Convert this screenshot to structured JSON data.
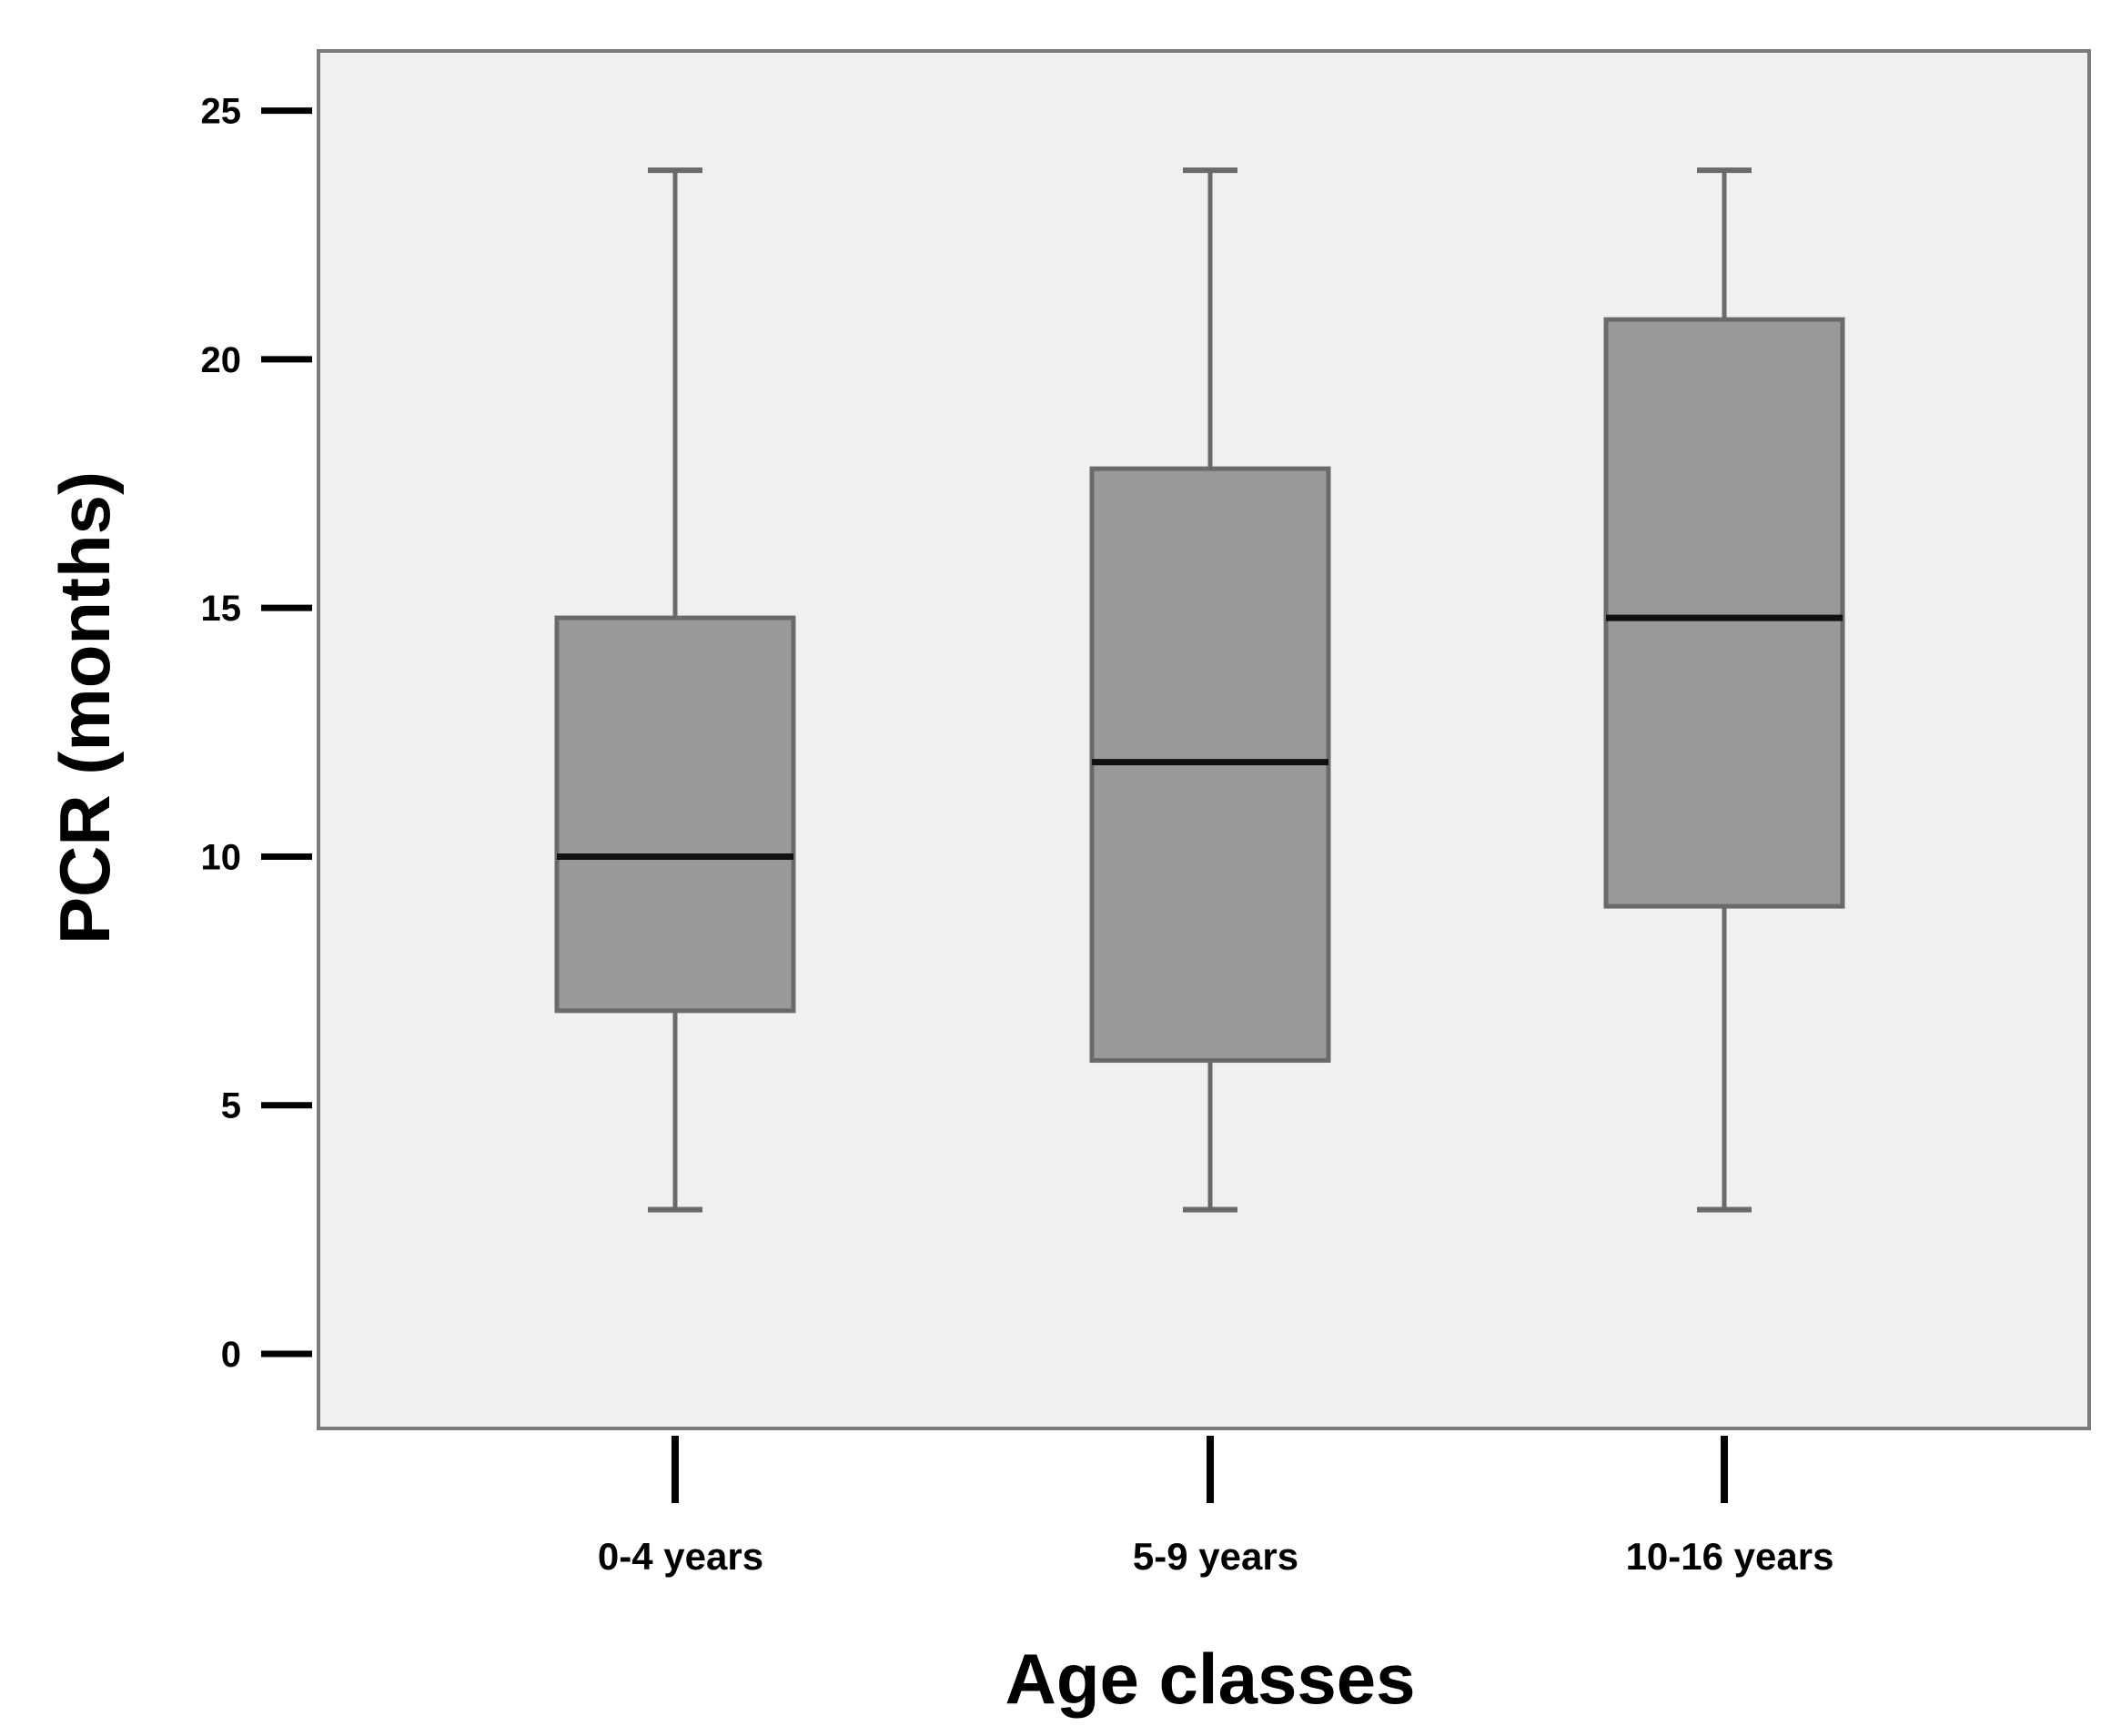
{
  "chart_data": {
    "type": "boxplot",
    "title": "",
    "xlabel": "Age classes",
    "ylabel": "PCR (months)",
    "ylim": [
      -1.5,
      26.2
    ],
    "yticks": [
      0,
      5,
      10,
      15,
      20,
      25
    ],
    "ytick_labels": [
      "0",
      "5",
      "10",
      "15",
      "20",
      "25"
    ],
    "grid": false,
    "legend": "none",
    "categories": [
      "0-4 years",
      "5-9 years",
      "10-16 years"
    ],
    "boxes": [
      {
        "category": "0-4 years",
        "whisker_low": 2.9,
        "q1": 6.9,
        "median": 10.0,
        "q3": 14.8,
        "whisker_high": 23.8
      },
      {
        "category": "5-9 years",
        "whisker_low": 2.9,
        "q1": 5.9,
        "median": 11.9,
        "q3": 17.8,
        "whisker_high": 23.8
      },
      {
        "category": "10-16 years",
        "whisker_low": 2.9,
        "q1": 9.0,
        "median": 14.8,
        "q3": 20.8,
        "whisker_high": 23.8
      }
    ],
    "colors": {
      "plot_background": "#f0f0f0",
      "plot_border": "#7a7a7a",
      "box_fill": "#999999",
      "box_stroke": "#6a6a6a",
      "median": "#111111",
      "whisker": "#6a6a6a",
      "axis": "#000000",
      "text": "#000000"
    }
  }
}
